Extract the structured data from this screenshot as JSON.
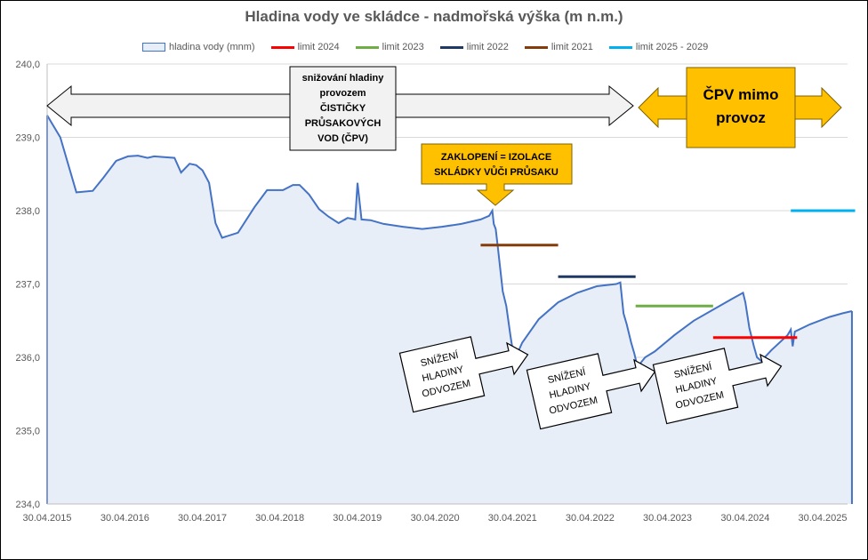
{
  "chart_data": {
    "type": "area",
    "title": "Hladina vody ve skládce - nadmořská výška (m n.m.)",
    "ylim": [
      234.0,
      240.0
    ],
    "y_ticks": [
      "234,0",
      "235,0",
      "236,0",
      "237,0",
      "238,0",
      "239,0",
      "240,0"
    ],
    "x_ticks": [
      "30.04.2015",
      "30.04.2016",
      "30.04.2017",
      "30.04.2018",
      "30.04.2019",
      "30.04.2020",
      "30.04.2021",
      "30.04.2022",
      "30.04.2023",
      "30.04.2024",
      "30.04.2025"
    ],
    "grid": "horizontal",
    "legend_position": "top",
    "series": [
      {
        "name": "hladina vody (mnm)",
        "color": "#4472c4",
        "fill": "#e8eef8",
        "points": [
          [
            "2015-04-30",
            239.3
          ],
          [
            "2015-07-01",
            239.0
          ],
          [
            "2015-09-15",
            238.25
          ],
          [
            "2015-12-01",
            238.27
          ],
          [
            "2016-01-20",
            238.45
          ],
          [
            "2016-03-20",
            238.68
          ],
          [
            "2016-05-15",
            238.74
          ],
          [
            "2016-07-01",
            238.75
          ],
          [
            "2016-08-15",
            238.72
          ],
          [
            "2016-09-15",
            238.74
          ],
          [
            "2016-11-01",
            238.73
          ],
          [
            "2016-12-20",
            238.72
          ],
          [
            "2017-01-20",
            238.52
          ],
          [
            "2017-03-01",
            238.64
          ],
          [
            "2017-04-01",
            238.62
          ],
          [
            "2017-05-01",
            238.55
          ],
          [
            "2017-06-01",
            238.38
          ],
          [
            "2017-07-01",
            237.83
          ],
          [
            "2017-08-01",
            237.63
          ],
          [
            "2017-10-15",
            237.7
          ],
          [
            "2018-01-01",
            238.05
          ],
          [
            "2018-03-01",
            238.28
          ],
          [
            "2018-05-15",
            238.28
          ],
          [
            "2018-07-01",
            238.35
          ],
          [
            "2018-08-01",
            238.35
          ],
          [
            "2018-09-15",
            238.22
          ],
          [
            "2018-11-01",
            238.02
          ],
          [
            "2018-12-15",
            237.92
          ],
          [
            "2019-02-01",
            237.83
          ],
          [
            "2019-03-15",
            237.9
          ],
          [
            "2019-04-20",
            237.88
          ],
          [
            "2019-05-01",
            238.38
          ],
          [
            "2019-05-20",
            237.88
          ],
          [
            "2019-07-01",
            237.87
          ],
          [
            "2019-09-01",
            237.82
          ],
          [
            "2019-12-01",
            237.78
          ],
          [
            "2020-03-01",
            237.75
          ],
          [
            "2020-06-01",
            237.78
          ],
          [
            "2020-09-01",
            237.82
          ],
          [
            "2020-12-01",
            237.88
          ],
          [
            "2021-01-10",
            237.93
          ],
          [
            "2021-01-25",
            238.0
          ],
          [
            "2021-02-01",
            237.82
          ],
          [
            "2021-02-10",
            237.75
          ],
          [
            "2021-02-20",
            237.5
          ],
          [
            "2021-03-15",
            236.9
          ],
          [
            "2021-04-01",
            236.7
          ],
          [
            "2021-04-20",
            236.3
          ],
          [
            "2021-05-01",
            236.1
          ],
          [
            "2021-05-15",
            236.0
          ],
          [
            "2021-06-15",
            236.2
          ],
          [
            "2021-09-01",
            236.52
          ],
          [
            "2021-12-01",
            236.75
          ],
          [
            "2022-03-01",
            236.88
          ],
          [
            "2022-06-01",
            236.97
          ],
          [
            "2022-09-01",
            237.0
          ],
          [
            "2022-09-20",
            237.02
          ],
          [
            "2022-10-05",
            236.6
          ],
          [
            "2022-10-20",
            236.45
          ],
          [
            "2022-11-10",
            236.2
          ],
          [
            "2022-11-25",
            236.05
          ],
          [
            "2022-12-10",
            235.87
          ],
          [
            "2023-01-15",
            236.0
          ],
          [
            "2023-03-01",
            236.08
          ],
          [
            "2023-06-01",
            236.3
          ],
          [
            "2023-09-01",
            236.5
          ],
          [
            "2023-12-01",
            236.65
          ],
          [
            "2024-03-01",
            236.8
          ],
          [
            "2024-04-20",
            236.88
          ],
          [
            "2024-05-01",
            236.75
          ],
          [
            "2024-05-20",
            236.4
          ],
          [
            "2024-06-10",
            236.15
          ],
          [
            "2024-06-25",
            236.0
          ],
          [
            "2024-07-15",
            235.95
          ],
          [
            "2024-09-01",
            236.1
          ],
          [
            "2024-11-15",
            236.3
          ],
          [
            "2024-12-01",
            236.38
          ],
          [
            "2024-12-10",
            236.15
          ],
          [
            "2024-12-20",
            236.35
          ],
          [
            "2025-03-01",
            236.45
          ],
          [
            "2025-06-01",
            236.55
          ],
          [
            "2025-08-01",
            236.6
          ],
          [
            "2025-09-15",
            236.63
          ]
        ]
      },
      {
        "name": "limit 2024",
        "color": "#ff0000",
        "points": [
          [
            "2023-12-01",
            236.27
          ],
          [
            "2024-12-31",
            236.27
          ]
        ]
      },
      {
        "name": "limit 2023",
        "color": "#70ad47",
        "points": [
          [
            "2022-12-01",
            236.7
          ],
          [
            "2023-12-01",
            236.7
          ]
        ]
      },
      {
        "name": "limit 2022",
        "color": "#203864",
        "points": [
          [
            "2021-12-01",
            237.1
          ],
          [
            "2022-12-01",
            237.1
          ]
        ]
      },
      {
        "name": "limit 2021",
        "color": "#843c0c",
        "points": [
          [
            "2020-12-01",
            237.53
          ],
          [
            "2021-12-01",
            237.53
          ]
        ]
      },
      {
        "name": "limit 2025 - 2029",
        "color": "#00b0f0",
        "points": [
          [
            "2024-12-01",
            238.0
          ],
          [
            "2025-09-30",
            238.0
          ]
        ]
      }
    ]
  },
  "annotations": {
    "box1_lines": [
      "snižování  hladiny",
      "provozem",
      "ČISTIČKY",
      "PRŮSAKOVÝCH",
      "VOD (ČPV)"
    ],
    "box2_lines": [
      "ZAKLOPENÍ = IZOLACE",
      "SKLÁDKY VŮČI PRŮSAKU"
    ],
    "box3_lines": [
      "ČPV mimo",
      "provoz"
    ],
    "odvoz_lines": [
      "SNÍŽENÍ",
      "HLADINY",
      "ODVOZEM"
    ]
  }
}
